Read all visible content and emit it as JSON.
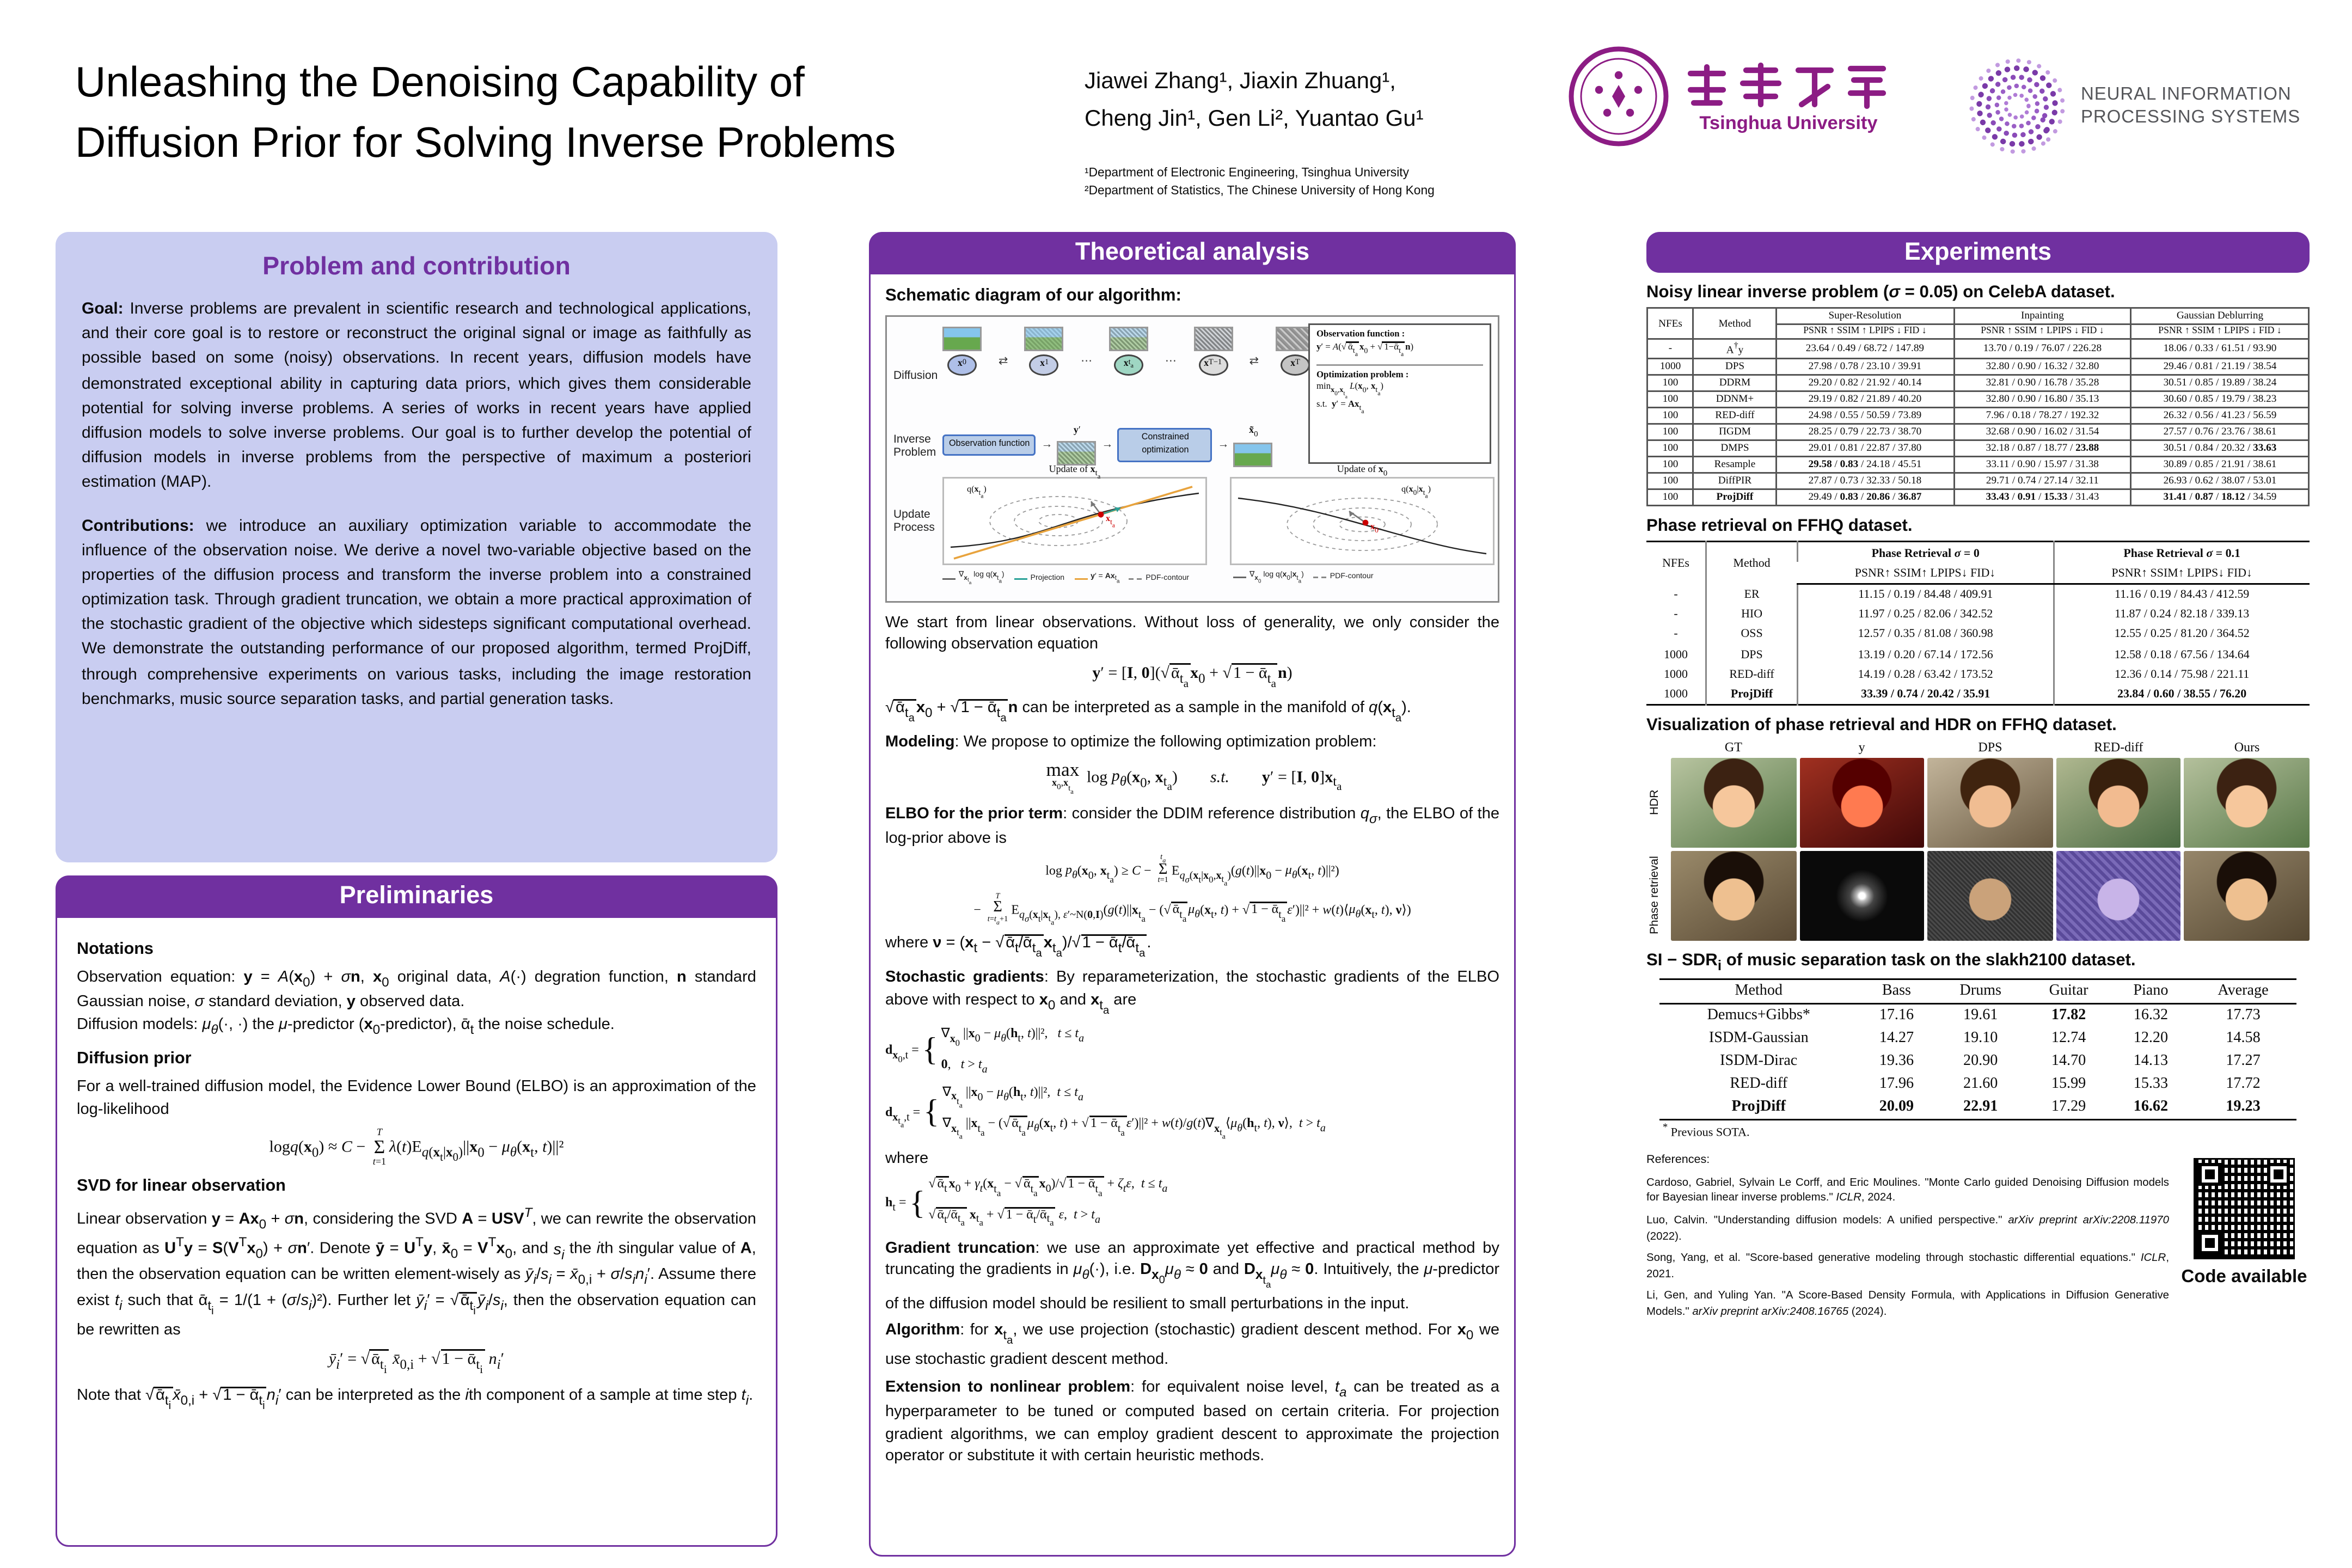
{
  "header": {
    "title_line1": "Unleashing the Denoising Capability of",
    "title_line2": "Diffusion Prior for Solving Inverse Problems",
    "authors_line1": "Jiawei Zhang¹, Jiaxin Zhuang¹,",
    "authors_line2": "Cheng Jin¹, Gen Li², Yuantao Gu¹",
    "affiliation1": "¹Department of Electronic Engineering, Tsinghua University",
    "affiliation2": "²Department of Statistics, The Chinese University of Hong Kong",
    "tsinghua_caption": "Tsinghua University",
    "neurips_line1": "NEURAL INFORMATION",
    "neurips_line2": "PROCESSING SYSTEMS"
  },
  "colors": {
    "purple": "#7030a0",
    "lavender": "#c9cdf1",
    "accent_red": "#cc0000"
  },
  "problem": {
    "title": "Problem and contribution",
    "goal_label": "Goal:",
    "goal_text": " Inverse problems are prevalent in scientific research and technological applications, and their core goal is to restore or reconstruct the original signal or image as faithfully as possible based on some (noisy) observations. In recent years, diffusion models have demonstrated exceptional ability in capturing data priors, which gives them considerable potential for solving inverse problems. A series of works in recent years have applied diffusion models to solve inverse problems. Our goal is to further develop the potential of diffusion models in inverse problems from the perspective of maximum a posteriori estimation (MAP).",
    "contrib_label": "Contributions:",
    "contrib_text": " we introduce an auxiliary optimization variable to accommodate the influence of the observation noise. We derive a novel two-variable objective based on the properties of the diffusion process and transform the inverse problem into a constrained optimization task. Through gradient truncation, we obtain a more practical approximation of the stochastic gradient of the objective which sidesteps significant computational overhead. We demonstrate the outstanding performance of our proposed algorithm, termed ProjDiff, through comprehensive experiments on various tasks, including the image restoration benchmarks, music source separation tasks, and partial generation tasks."
  },
  "prelim": {
    "title": "Preliminaries",
    "notations_h": "Notations",
    "n1_html": "Observation equation: <b>y</b> = <i>A</i>(<b>x</b><sub>0</sub>) + <i>σ</i><b>n</b>, <b>x</b><sub>0</sub> original data, <i>A</i>(·) degration function, <b>n</b> standard Gaussian noise, <i>σ</i> standard deviation, <b>y</b> observed data.",
    "n2_html": "Diffusion models: <i>μ<sub>θ</sub></i>(·, ·) the <i>μ</i>-predictor (<b>x</b><sub>0</sub>-predictor), ᾱ<sub>t</sub> the noise schedule.",
    "prior_h": "Diffusion prior",
    "prior_text": "For a well-trained diffusion model, the Evidence Lower Bound (ELBO) is an approximation of the log-likelihood",
    "prior_formula_html": "log<i>q</i>(<b>x</b><sub>0</sub>) ≈ <i>C</i> − <span class=\"msum\"><span class=\"l\"><i>T</i></span><span class=\"s\">Σ</span><span class=\"l\"><i>t</i>=1</span></span><i>λ</i>(<i>t</i>)E<sub><i>q</i>(<b>x</b><sub>t</sub>|<b>x</b><sub>0</sub>)</sub>||<b>x</b><sub>0</sub> − <i>μ<sub>θ</sub></i>(<b>x</b><sub>t</sub>, <i>t</i>)||²",
    "svd_h": "SVD for linear observation",
    "svd_text_html": "Linear observation <b>y</b> = <b>Ax</b><sub>0</sub> + <i>σ</i><b>n</b>, considering the SVD <b>A</b> = <b>USV</b><sup><i>T</i></sup>, we can rewrite the observation equation as <b>U</b><sup>T</sup><b>y</b> = <b>S</b>(<b>V</b><sup>T</sup><b>x</b><sub>0</sub>) + <i>σ</i><b>n</b>′. Denote <b>ȳ</b> = <b>U</b><sup>T</sup><b>y</b>, <b>x̄</b><sub>0</sub> = <b>V</b><sup>T</sup><b>x</b><sub>0</sub>, and <i>s<sub>i</sub></i> the <i>i</i>th singular value of <b>A</b>, then the observation equation can be written element-wisely as <i>ȳ<sub>i</sub></i>/<i>s<sub>i</sub></i> = <i>x̄</i><sub>0,i</sub> + <i>σ</i>/<i>s<sub>i</sub></i><i>n<sub>i</sub></i>′. Assume there exist <i>t<sub>i</sub></i> such that ᾱ<sub>t<sub>i</sub></sub> = 1/(1 + (<i>σ</i>/<i>s<sub>i</sub></i>)²). Further let <i>ȳ<sub>i</sub></i>′ = √<span class=\"ov\">ᾱ<sub>t<sub>i</sub></sub></span><i>ȳ<sub>i</sub></i>/<i>s<sub>i</sub></i>, then the observation equation can be rewritten as",
    "svd_formula_html": "<i>ȳ<sub>i</sub></i>′ = √<span class=\"ov\">ᾱ<sub>t<sub>i</sub></sub></span> <i>x̄</i><sub>0,i</sub> + √<span class=\"ov\">1 − ᾱ<sub>t<sub>i</sub></sub></span> <i>n<sub>i</sub></i>′",
    "svd_note_html": "Note that √<span class=\"ov\">ᾱ<sub>t<sub>i</sub></sub></span><i>x̄</i><sub>0,i</sub> + √<span class=\"ov\">1 − ᾱ<sub>t<sub>i</sub></sub></span><i>n<sub>i</sub></i>′ can be interpreted as the <i>i</i>th component of a sample at time step <i>t<sub>i</sub></i>."
  },
  "theory": {
    "title": "Theoretical analysis",
    "schematic_label": "Schematic diagram of our algorithm:",
    "intro": "We start from linear observations. Without loss of generality, we only consider the following observation equation",
    "obs_eq_html": "<b>y</b>′ = [<b>I</b>, <b>0</b>](√<span class=\"ov\">ᾱ<sub>t<sub>a</sub></sub></span><b>x</b><sub>0</sub> + √<span class=\"ov\">1 − ᾱ<sub>t<sub>a</sub></sub></span><b>n</b>)",
    "manifold_html": "√<span class=\"ov\">ᾱ<sub>t<sub>a</sub></sub></span><b>x</b><sub>0</sub> + √<span class=\"ov\">1 − ᾱ<sub>t<sub>a</sub></sub></span><b>n</b> can be interpreted as a sample in the manifold of <i>q</i>(<b>x</b><sub>t<sub>a</sub></sub>).",
    "modeling_html": "<b>Modeling</b>: We propose to optimize the following optimization problem:",
    "opt_html": "<span class=\"msum\"><span class=\"s\">max</span><span class=\"l\"><b>x</b><sub>0</sub>,<b>x</b><sub>t<sub>a</sub></sub></span></span> log <i>p<sub>θ</sub></i>(<b>x</b><sub>0</sub>, <b>x</b><sub>t<sub>a</sub></sub>)&emsp;&emsp;<i>s.t.</i>&emsp;&emsp;<b>y</b>′ = [<b>I</b>, <b>0</b>]<b>x</b><sub>t<sub>a</sub></sub>",
    "elbo_intro_html": "<b>ELBO for the prior term</b>: consider the DDIM reference distribution <i>q<sub>σ</sub></i>, the ELBO of the log-prior above is",
    "elbo1_html": "log <i>p<sub>θ</sub></i>(<b>x</b><sub>0</sub>, <b>x</b><sub>t<sub>a</sub></sub>) ≥ <i>C</i> − <span class=\"msum\"><span class=\"l\"><i>t<sub>a</sub></i></span><span class=\"s\">Σ</span><span class=\"l\"><i>t</i>=1</span></span>E<sub><i>q<sub>σ</sub></i>(<b>x</b><sub>t</sub>|<b>x</b><sub>0</sub>,<b>x</b><sub>t<sub>a</sub></sub>)</sub>(<i>g</i>(<i>t</i>)||<b>x</b><sub>0</sub> − <i>μ<sub>θ</sub></i>(<b>x</b><sub>t</sub>, <i>t</i>)||²)",
    "elbo2_html": "− <span class=\"msum\"><span class=\"l\"><i>T</i></span><span class=\"s\">Σ</span><span class=\"l\"><i>t</i>=<i>t<sub>a</sub></i>+1</span></span>E<sub><i>q<sub>σ</sub></i>(<b>x</b><sub>t</sub>|<b>x</b><sub>t<sub>a</sub></sub>), <i>ε</i>′~N(<b>0</b>,<b>I</b>)</sub>(<i>g</i>(<i>t</i>)||<b>x</b><sub>t<sub>a</sub></sub> − (√<span class=\"ov\">ᾱ<sub>t<sub>a</sub></sub></span><i>μ<sub>θ</sub></i>(<b>x</b><sub>t</sub>, <i>t</i>) + √<span class=\"ov\">1 − ᾱ<sub>t<sub>a</sub></sub></span><i>ε</i>′)||² + <i>w</i>(<i>t</i>)⟨<i>μ<sub>θ</sub></i>(<b>x</b><sub>t</sub>, <i>t</i>), <b>ν</b>⟩)",
    "where_nu_html": "where <b>ν</b> = (<b>x</b><sub>t</sub> − √<span class=\"ov\">ᾱ<sub>t</sub>/ᾱ<sub>t<sub>a</sub></sub></span><b>x</b><sub>t<sub>a</sub></sub>)/√<span class=\"ov\">1 − ᾱ<sub>t</sub>/ᾱ<sub>t<sub>a</sub></sub></span>.",
    "stoch_html": "<b>Stochastic gradients</b>: By reparameterization, the stochastic gradients of the ELBO above with respect to <b>x</b><sub>0</sub> and <b>x</b><sub>t<sub>a</sub></sub> are",
    "d1_html": "<b>d</b><sub><b>x</b><sub>0</sub>,t</sub> = <span class=\"cases\"><span class=\"brace\">{</span><span class=\"stack\"><span>∇<sub><b>x</b><sub>0</sub></sub> ||<b>x</b><sub>0</sub> − <i>μ<sub>θ</sub></i>(<b>h</b><sub>t</sub>, <i>t</i>)||²,&nbsp;&nbsp;&nbsp;<i>t</i> ≤ <i>t<sub>a</sub></i></span><span><b>0</b>,&nbsp;&nbsp;&nbsp;<i>t</i> &gt; <i>t<sub>a</sub></i></span></span></span>",
    "d2_html": "<b>d</b><sub><b>x</b><sub>t<sub>a</sub></sub>,t</sub> = <span class=\"cases\"><span class=\"brace\">{</span><span class=\"stack\"><span>∇<sub><b>x</b><sub>t<sub>a</sub></sub></sub> ||<b>x</b><sub>0</sub> − <i>μ<sub>θ</sub></i>(<b>h</b><sub>t</sub>, <i>t</i>)||²,&nbsp;&nbsp;<i>t</i> ≤ <i>t<sub>a</sub></i></span><span>∇<sub><b>x</b><sub>t<sub>a</sub></sub></sub> ||<b>x</b><sub>t<sub>a</sub></sub> − (√<span class=\"ov\">ᾱ<sub>t<sub>a</sub></sub></span><i>μ<sub>θ</sub></i>(<b>x</b><sub>t</sub>, <i>t</i>) + √<span class=\"ov\">1 − ᾱ<sub>t<sub>a</sub></sub></span><i>ε</i>′)||² + <i>w</i>(<i>t</i>)/<i>g</i>(<i>t</i>)∇<sub><b>x</b><sub>t<sub>a</sub></sub></sub>⟨<i>μ<sub>θ</sub></i>(<b>h</b><sub>t</sub>, <i>t</i>), <b>ν</b>⟩,&nbsp;&nbsp;<i>t</i> &gt; <i>t<sub>a</sub></i></span></span></span>",
    "where_word": "where",
    "h_html": "<b>h</b><sub>t</sub> = <span class=\"cases\"><span class=\"brace\">{</span><span class=\"stack\"><span>√<span class=\"ov\">ᾱ<sub>t</sub></span><b>x</b><sub>0</sub> + <i>γ<sub>t</sub></i>(<b>x</b><sub>t<sub>a</sub></sub> − √<span class=\"ov\">ᾱ<sub>t<sub>a</sub></sub></span><b>x</b><sub>0</sub>)/√<span class=\"ov\">1 − ᾱ<sub>t<sub>a</sub></sub></span> + <i>ζ<sub>t</sub></i><i>ε</i>,&nbsp;&nbsp;<i>t</i> ≤ <i>t<sub>a</sub></i></span><span>√<span class=\"ov\">ᾱ<sub>t</sub>/ᾱ<sub>t<sub>a</sub></sub></span> <b>x</b><sub>t<sub>a</sub></sub> + √<span class=\"ov\">1 − ᾱ<sub>t</sub>/ᾱ<sub>t<sub>a</sub></sub></span> <i>ε</i>,&nbsp;&nbsp;<i>t</i> &gt; <i>t<sub>a</sub></i></span></span></span>",
    "grad_html": "<b>Gradient truncation</b>: we use an approximate yet effective and practical method by truncating the gradients in <i>μ<sub>θ</sub></i>(·), i.e. <b>D</b><sub><b>x</b><sub>0</sub></sub><i>μ<sub>θ</sub></i> ≈ <b>0</b> and <b>D</b><sub><b>x</b><sub>t<sub>a</sub></sub></sub><i>μ<sub>θ</sub></i> ≈ <b>0</b>. Intuitively, the <i>μ</i>-predictor of the diffusion model should be resilient to small perturbations in the input.",
    "algo_html": "<b>Algorithm</b>: for <b>x</b><sub>t<sub>a</sub></sub>, we use projection (stochastic) gradient descent method. For <b>x</b><sub>0</sub> we use stochastic gradient descent method.",
    "ext_html": "<b>Extension to nonlinear problem</b>: for equivalent noise level, <i>t<sub>a</sub></i> can be treated as a hyperparameter to be tuned or computed based on certain criteria. For projection gradient algorithms, we can employ gradient descent to approximate the projection operator or substitute it with certain heuristic methods."
  },
  "diagram": {
    "row1_label": "Diffusion",
    "row2_label": "Inverse Problem",
    "row3_label": "Update Process",
    "nodes_html": [
      "<b>x</b><sub>0</sub>",
      "<b>x</b><sub>1</sub>",
      "<b>x</b><sub>t<sub>a</sub></sub>",
      "<b>x</b><sub>T−1</sub>",
      "<b>x</b><sub>T</sub>"
    ],
    "exch": "⇄",
    "dots": "⋯",
    "arrow": "→",
    "obs_box": "Observation function",
    "y_label_html": "<b>y</b>′",
    "opt_box": "Constrained optimization",
    "xhat_label_html": "<b>x̃</b><sub>0</sub>",
    "panel1_title": "Observation function :",
    "panel1_f_html": "<b>y</b>′ = <i>A</i>(√<span class=\"ov\">ᾱ<sub>t<sub>a</sub></sub></span><b>x</b><sub>0</sub> + √<span class=\"ov\">1−ᾱ<sub>t<sub>a</sub></sub></span><b>n</b>)",
    "panel2_title": "Optimization problem :",
    "panel2_f1_html": "min<sub><b>x</b><sub>0</sub>,<b>x</b><sub>t<sub>a</sub></sub></sub> <i>L</i>(<b>x</b><sub>0</sub>, <b>x</b><sub>t<sub>a</sub></sub>)",
    "panel2_f2_html": "s.t.&nbsp;&nbsp;<b>y</b>′ = <b>Ax</b><sub>t<sub>a</sub></sub>",
    "plot1_title_html": "Update of <b>x</b><sub>t<sub>a</sub></sub>",
    "plot2_title_html": "Update of <b>x</b><sub>0</sub>",
    "plot1_q_html": "q(<b>x</b><sub>t<sub>a</sub></sub>)",
    "plot2_q_html": "q(<b>x</b><sub>0</sub>|<b>x</b><sub>t<sub>a</sub></sub>)",
    "plot1_x_html": "<b>x</b><sub>t<sub>a</sub></sub>",
    "plot2_x_html": "<b>x</b><sub>0</sub>",
    "legend1": [
      "∇<sub><b>x</b><sub>t<sub>a</sub></sub></sub> log q(<b>x</b><sub>t<sub>a</sub></sub>)",
      "Projection",
      "<b>y</b>′ = <b>Ax</b><sub>t<sub>a</sub></sub>",
      "PDF-contour"
    ],
    "legend2": [
      "∇<sub><b>x</b><sub>0</sub></sub> log q(<b>x</b><sub>0</sub>|<b>x</b><sub>t<sub>a</sub></sub>)",
      "PDF-contour"
    ]
  },
  "experiments": {
    "title": "Experiments",
    "celeba": {
      "caption_html": "Noisy linear inverse problem (<i>σ</i> = 0.05) on CelebA dataset.",
      "col1": "NFEs",
      "col2": "Method",
      "groups": [
        "Super-Resolution",
        "Inpainting",
        "Gaussian Deblurring"
      ],
      "metrics_html": "PSNR ↑ SSIM ↑ LPIPS ↓ FID ↓",
      "rows": [
        [
          "-",
          "A<sup>†</sup>y",
          "23.64 / 0.49 / 68.72 / 147.89",
          "13.70 / 0.19 / 76.07 / 226.28",
          "18.06 / 0.33 / 61.51 / 93.90"
        ],
        [
          "1000",
          "DPS",
          "27.98 / 0.78 / 23.10 / 39.91",
          "32.80 / 0.90 / 16.32 / 32.80",
          "29.46 / 0.81 / 21.19 / 38.54"
        ],
        [
          "100",
          "DDRM",
          "29.20 / 0.82 / 21.92 / 40.14",
          "32.81 / 0.90 / 16.78 / 35.28",
          "30.51 / 0.85 / 19.89 / 38.24"
        ],
        [
          "100",
          "DDNM+",
          "29.19 / 0.82 / 21.89 / 40.20",
          "32.80 / 0.90 / 16.80 / 35.13",
          "30.60 / 0.85 / 19.79 / 38.23"
        ],
        [
          "100",
          "RED-diff",
          "24.98 / 0.55 / 50.59 / 73.89",
          "7.96 / 0.18 / 78.27 / 192.32",
          "26.32 / 0.56 / 41.23 / 56.59"
        ],
        [
          "100",
          "ΠGDM",
          "28.25 / 0.79 / 22.73 / 38.70",
          "32.68 / 0.90 / 16.02 / 31.54",
          "27.57 / 0.76 / 23.76 / 38.61"
        ],
        [
          "100",
          "DMPS",
          "29.01 / 0.81 / 22.87 / 37.80",
          "32.18 / 0.87 / 18.77 / <b>23.88</b>",
          "30.51 / 0.84 / 20.32 / <b>33.63</b>"
        ],
        [
          "100",
          "Resample",
          "<b>29.58</b> / <b>0.83</b> / 24.18 / 45.51",
          "33.11 / 0.90 / 15.97 / 31.38",
          "30.89 / 0.85 / 21.91 / 38.61"
        ],
        [
          "100",
          "DiffPIR",
          "27.87 / 0.73 / 32.33 / 50.18",
          "29.71 / 0.74 / 27.14 / 32.11",
          "26.93 / 0.62 / 38.07 / 53.01"
        ],
        [
          "100",
          "<b>ProjDiff</b>",
          "29.49 / <b>0.83</b> / <b>20.86</b> / <b>36.87</b>",
          "<b>33.43</b> / <b>0.91</b> / <b>15.33</b> / 31.43",
          "<b>31.41</b> / <b>0.87</b> / <b>18.12</b> / 34.59"
        ]
      ]
    },
    "phase": {
      "caption": "Phase retrieval on FFHQ dataset.",
      "col1": "NFEs",
      "col2": "Method",
      "groups_html": [
        "Phase Retrieval <i>σ</i> = 0",
        "Phase Retrieval <i>σ</i> = 0.1"
      ],
      "metrics_html": "PSNR↑ SSIM↑ LPIPS↓ FID↓",
      "rows": [
        [
          "-",
          "ER",
          "11.15 / 0.19 / 84.48 / 409.91",
          "11.16 / 0.19 / 84.43 / 412.59"
        ],
        [
          "-",
          "HIO",
          "11.97 / 0.25 / 82.06 / 342.52",
          "11.87 / 0.24 / 82.18 / 339.13"
        ],
        [
          "-",
          "OSS",
          "12.57 / 0.35 / 81.08 / 360.98",
          "12.55 / 0.25 / 81.20 / 364.52"
        ],
        [
          "1000",
          "DPS",
          "13.19 / 0.20 / 67.14 / 172.56",
          "12.58 / 0.18 / 67.56 / 134.64"
        ],
        [
          "1000",
          "RED-diff",
          "14.19 / 0.28 / 63.42 / 173.52",
          "12.36 / 0.14 / 75.98 / 221.11"
        ],
        [
          "1000",
          "<b>ProjDiff</b>",
          "<b>33.39 / 0.74 / 20.42 / 35.91</b>",
          "<b>23.84 / 0.60 / 38.55 / 76.20</b>"
        ]
      ]
    },
    "viz_caption": "Visualization of phase retrieval and HDR on FFHQ dataset.",
    "viz_cols": [
      "GT",
      "y",
      "DPS",
      "RED-diff",
      "Ours"
    ],
    "viz_rows": [
      "HDR",
      "Phase retrieval"
    ],
    "music": {
      "caption_html": "SI − SDR<sub>i</sub> of music separation task on the slakh2100 dataset.",
      "headers": [
        "Method",
        "Bass",
        "Drums",
        "Guitar",
        "Piano",
        "Average"
      ],
      "rows": [
        [
          "Demucs+Gibbs*",
          "17.16",
          "19.61",
          "<b>17.82</b>",
          "16.32",
          "17.73"
        ],
        [
          "ISDM-Gaussian",
          "14.27",
          "19.10",
          "12.74",
          "12.20",
          "14.58"
        ],
        [
          "ISDM-Dirac",
          "19.36",
          "20.90",
          "14.70",
          "14.13",
          "17.27"
        ],
        [
          "RED-diff",
          "17.96",
          "21.60",
          "15.99",
          "15.33",
          "17.72"
        ],
        [
          "<b>ProjDiff</b>",
          "<b>20.09</b>",
          "<b>22.91</b>",
          "17.29",
          "<b>16.62</b>",
          "<b>19.23</b>"
        ]
      ],
      "footnote_html": "<sup>*</sup> Previous SOTA."
    },
    "refs_label": "References:",
    "references": [
      "Cardoso, Gabriel, Sylvain Le Corff, and Eric Moulines. \"Monte Carlo guided Denoising Diffusion models for Bayesian linear inverse problems.\" <i>ICLR</i>, 2024.",
      "Luo, Calvin. \"Understanding diffusion models: A unified perspective.\" <i>arXiv preprint arXiv:2208.11970</i> (2022).",
      "Song, Yang, et al. \"Score-based generative modeling through stochastic differential equations.\" <i>ICLR</i>, 2021.",
      "Li, Gen, and Yuling Yan. \"A Score-Based Density Formula, with Applications in Diffusion Generative Models.\" <i>arXiv preprint arXiv:2408.16765</i> (2024)."
    ],
    "qr_caption": "Code available"
  }
}
